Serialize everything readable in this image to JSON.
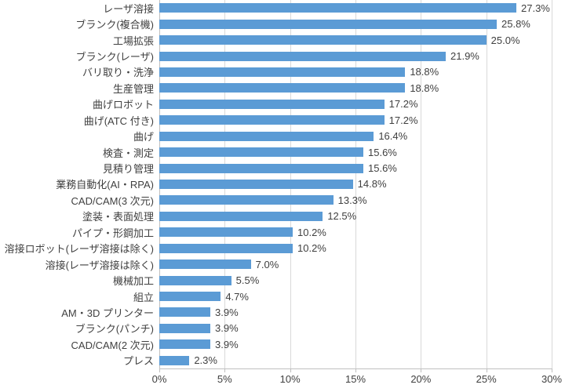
{
  "chart_data": {
    "type": "bar",
    "orientation": "horizontal",
    "title": "",
    "xlabel": "",
    "ylabel": "",
    "xlim": [
      0,
      30
    ],
    "grid": "vertical",
    "legend_position": "none",
    "bar_color": "#5b9bd5",
    "gridline_color": "#d9d9d9",
    "axis_color": "#bfbfbf",
    "text_color": "#404040",
    "x_tick_values": [
      0,
      5,
      10,
      15,
      20,
      25,
      30
    ],
    "x_tick_labels": [
      "0%",
      "5%",
      "10%",
      "15%",
      "20%",
      "25%",
      "30%"
    ],
    "categories": [
      "レーザ溶接",
      "ブランク(複合機)",
      "工場拡張",
      "ブランク(レーザ)",
      "バリ取り・洗浄",
      "生産管理",
      "曲げロボット",
      "曲げ(ATC 付き)",
      "曲げ",
      "検査・測定",
      "見積り管理",
      "業務自動化(AI・RPA)",
      "CAD/CAM(3 次元)",
      "塗装・表面処理",
      "パイプ・形鋼加工",
      "溶接ロボット(レーザ溶接は除く)",
      "溶接(レーザ溶接は除く)",
      "機械加工",
      "組立",
      "AM・3D プリンター",
      "ブランク(パンチ)",
      "CAD/CAM(2 次元)",
      "プレス"
    ],
    "values": [
      27.3,
      25.8,
      25.0,
      21.9,
      18.8,
      18.8,
      17.2,
      17.2,
      16.4,
      15.6,
      15.6,
      14.8,
      13.3,
      12.5,
      10.2,
      10.2,
      7.0,
      5.5,
      4.7,
      3.9,
      3.9,
      3.9,
      2.3
    ],
    "value_labels": [
      "27.3%",
      "25.8%",
      "25.0%",
      "21.9%",
      "18.8%",
      "18.8%",
      "17.2%",
      "17.2%",
      "16.4%",
      "15.6%",
      "15.6%",
      "14.8%",
      "13.3%",
      "12.5%",
      "10.2%",
      "10.2%",
      "7.0%",
      "5.5%",
      "4.7%",
      "3.9%",
      "3.9%",
      "3.9%",
      "2.3%"
    ]
  }
}
